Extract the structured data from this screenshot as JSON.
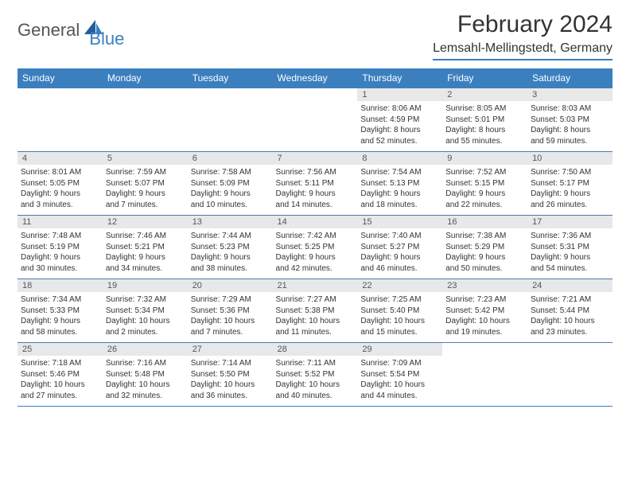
{
  "logo": {
    "word1": "General",
    "word2": "Blue"
  },
  "title": "February 2024",
  "location": "Lemsahl-Mellingstedt, Germany",
  "accent_color": "#3b7fbf",
  "header_bg": "#3b7fbf",
  "daynum_bg": "#e8e8e8",
  "text_color": "#333333",
  "day_headers": [
    "Sunday",
    "Monday",
    "Tuesday",
    "Wednesday",
    "Thursday",
    "Friday",
    "Saturday"
  ],
  "weeks": [
    [
      null,
      null,
      null,
      null,
      {
        "n": "1",
        "sr": "Sunrise: 8:06 AM",
        "ss": "Sunset: 4:59 PM",
        "d1": "Daylight: 8 hours",
        "d2": "and 52 minutes."
      },
      {
        "n": "2",
        "sr": "Sunrise: 8:05 AM",
        "ss": "Sunset: 5:01 PM",
        "d1": "Daylight: 8 hours",
        "d2": "and 55 minutes."
      },
      {
        "n": "3",
        "sr": "Sunrise: 8:03 AM",
        "ss": "Sunset: 5:03 PM",
        "d1": "Daylight: 8 hours",
        "d2": "and 59 minutes."
      }
    ],
    [
      {
        "n": "4",
        "sr": "Sunrise: 8:01 AM",
        "ss": "Sunset: 5:05 PM",
        "d1": "Daylight: 9 hours",
        "d2": "and 3 minutes."
      },
      {
        "n": "5",
        "sr": "Sunrise: 7:59 AM",
        "ss": "Sunset: 5:07 PM",
        "d1": "Daylight: 9 hours",
        "d2": "and 7 minutes."
      },
      {
        "n": "6",
        "sr": "Sunrise: 7:58 AM",
        "ss": "Sunset: 5:09 PM",
        "d1": "Daylight: 9 hours",
        "d2": "and 10 minutes."
      },
      {
        "n": "7",
        "sr": "Sunrise: 7:56 AM",
        "ss": "Sunset: 5:11 PM",
        "d1": "Daylight: 9 hours",
        "d2": "and 14 minutes."
      },
      {
        "n": "8",
        "sr": "Sunrise: 7:54 AM",
        "ss": "Sunset: 5:13 PM",
        "d1": "Daylight: 9 hours",
        "d2": "and 18 minutes."
      },
      {
        "n": "9",
        "sr": "Sunrise: 7:52 AM",
        "ss": "Sunset: 5:15 PM",
        "d1": "Daylight: 9 hours",
        "d2": "and 22 minutes."
      },
      {
        "n": "10",
        "sr": "Sunrise: 7:50 AM",
        "ss": "Sunset: 5:17 PM",
        "d1": "Daylight: 9 hours",
        "d2": "and 26 minutes."
      }
    ],
    [
      {
        "n": "11",
        "sr": "Sunrise: 7:48 AM",
        "ss": "Sunset: 5:19 PM",
        "d1": "Daylight: 9 hours",
        "d2": "and 30 minutes."
      },
      {
        "n": "12",
        "sr": "Sunrise: 7:46 AM",
        "ss": "Sunset: 5:21 PM",
        "d1": "Daylight: 9 hours",
        "d2": "and 34 minutes."
      },
      {
        "n": "13",
        "sr": "Sunrise: 7:44 AM",
        "ss": "Sunset: 5:23 PM",
        "d1": "Daylight: 9 hours",
        "d2": "and 38 minutes."
      },
      {
        "n": "14",
        "sr": "Sunrise: 7:42 AM",
        "ss": "Sunset: 5:25 PM",
        "d1": "Daylight: 9 hours",
        "d2": "and 42 minutes."
      },
      {
        "n": "15",
        "sr": "Sunrise: 7:40 AM",
        "ss": "Sunset: 5:27 PM",
        "d1": "Daylight: 9 hours",
        "d2": "and 46 minutes."
      },
      {
        "n": "16",
        "sr": "Sunrise: 7:38 AM",
        "ss": "Sunset: 5:29 PM",
        "d1": "Daylight: 9 hours",
        "d2": "and 50 minutes."
      },
      {
        "n": "17",
        "sr": "Sunrise: 7:36 AM",
        "ss": "Sunset: 5:31 PM",
        "d1": "Daylight: 9 hours",
        "d2": "and 54 minutes."
      }
    ],
    [
      {
        "n": "18",
        "sr": "Sunrise: 7:34 AM",
        "ss": "Sunset: 5:33 PM",
        "d1": "Daylight: 9 hours",
        "d2": "and 58 minutes."
      },
      {
        "n": "19",
        "sr": "Sunrise: 7:32 AM",
        "ss": "Sunset: 5:34 PM",
        "d1": "Daylight: 10 hours",
        "d2": "and 2 minutes."
      },
      {
        "n": "20",
        "sr": "Sunrise: 7:29 AM",
        "ss": "Sunset: 5:36 PM",
        "d1": "Daylight: 10 hours",
        "d2": "and 7 minutes."
      },
      {
        "n": "21",
        "sr": "Sunrise: 7:27 AM",
        "ss": "Sunset: 5:38 PM",
        "d1": "Daylight: 10 hours",
        "d2": "and 11 minutes."
      },
      {
        "n": "22",
        "sr": "Sunrise: 7:25 AM",
        "ss": "Sunset: 5:40 PM",
        "d1": "Daylight: 10 hours",
        "d2": "and 15 minutes."
      },
      {
        "n": "23",
        "sr": "Sunrise: 7:23 AM",
        "ss": "Sunset: 5:42 PM",
        "d1": "Daylight: 10 hours",
        "d2": "and 19 minutes."
      },
      {
        "n": "24",
        "sr": "Sunrise: 7:21 AM",
        "ss": "Sunset: 5:44 PM",
        "d1": "Daylight: 10 hours",
        "d2": "and 23 minutes."
      }
    ],
    [
      {
        "n": "25",
        "sr": "Sunrise: 7:18 AM",
        "ss": "Sunset: 5:46 PM",
        "d1": "Daylight: 10 hours",
        "d2": "and 27 minutes."
      },
      {
        "n": "26",
        "sr": "Sunrise: 7:16 AM",
        "ss": "Sunset: 5:48 PM",
        "d1": "Daylight: 10 hours",
        "d2": "and 32 minutes."
      },
      {
        "n": "27",
        "sr": "Sunrise: 7:14 AM",
        "ss": "Sunset: 5:50 PM",
        "d1": "Daylight: 10 hours",
        "d2": "and 36 minutes."
      },
      {
        "n": "28",
        "sr": "Sunrise: 7:11 AM",
        "ss": "Sunset: 5:52 PM",
        "d1": "Daylight: 10 hours",
        "d2": "and 40 minutes."
      },
      {
        "n": "29",
        "sr": "Sunrise: 7:09 AM",
        "ss": "Sunset: 5:54 PM",
        "d1": "Daylight: 10 hours",
        "d2": "and 44 minutes."
      },
      null,
      null
    ]
  ]
}
